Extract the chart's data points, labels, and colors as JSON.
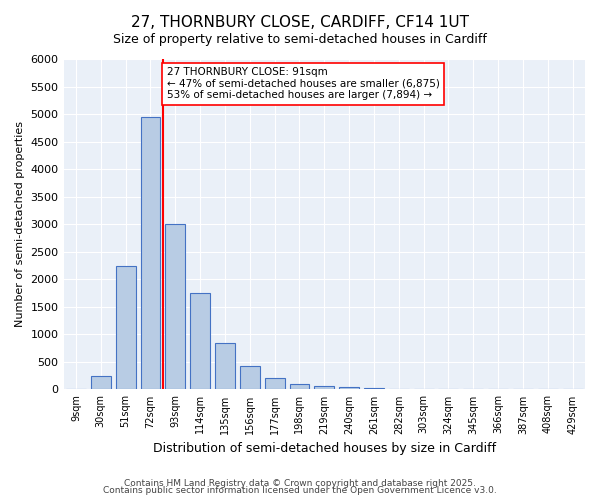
{
  "title1": "27, THORNBURY CLOSE, CARDIFF, CF14 1UT",
  "title2": "Size of property relative to semi-detached houses in Cardiff",
  "xlabel": "Distribution of semi-detached houses by size in Cardiff",
  "ylabel": "Number of semi-detached properties",
  "bin_labels": [
    "9sqm",
    "30sqm",
    "51sqm",
    "72sqm",
    "93sqm",
    "114sqm",
    "135sqm",
    "156sqm",
    "177sqm",
    "198sqm",
    "219sqm",
    "240sqm",
    "261sqm",
    "282sqm",
    "303sqm",
    "324sqm",
    "345sqm",
    "366sqm",
    "387sqm",
    "408sqm",
    "429sqm"
  ],
  "bar_heights": [
    0,
    250,
    2250,
    4950,
    3000,
    1750,
    850,
    425,
    200,
    100,
    60,
    40,
    20,
    10,
    5,
    2,
    1,
    0,
    0,
    0,
    0
  ],
  "bar_color": "#b8cce4",
  "bar_edge_color": "#4472c4",
  "property_line_x": 3.5,
  "annotation_text": "27 THORNBURY CLOSE: 91sqm\n← 47% of semi-detached houses are smaller (6,875)\n53% of semi-detached houses are larger (7,894) →",
  "ylim": [
    0,
    6000
  ],
  "yticks": [
    0,
    500,
    1000,
    1500,
    2000,
    2500,
    3000,
    3500,
    4000,
    4500,
    5000,
    5500,
    6000
  ],
  "background_color": "#eaf0f8",
  "footer_line1": "Contains HM Land Registry data © Crown copyright and database right 2025.",
  "footer_line2": "Contains public sector information licensed under the Open Government Licence v3.0."
}
